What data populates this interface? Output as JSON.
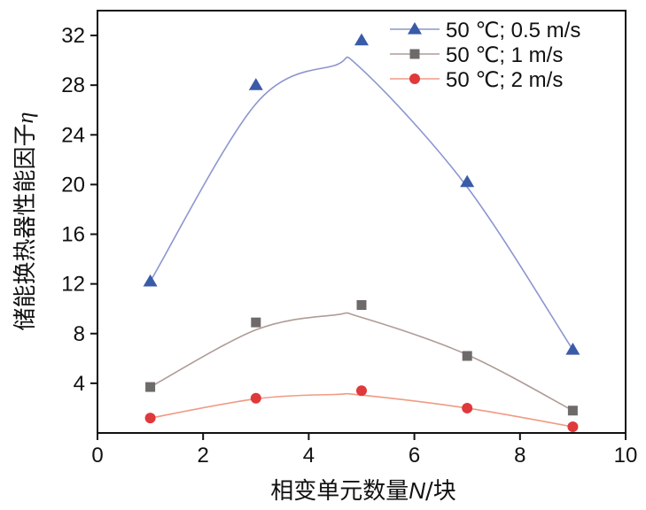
{
  "chart_data": {
    "type": "scatter",
    "title": "",
    "xlabel": "相变单元数量N/块",
    "xlabel_prefix": "相变单元数量",
    "xlabel_var": "N",
    "xlabel_suffix": "/块",
    "ylabel": "储能换热器性能因子η",
    "ylabel_prefix": "储能换热器性能因子",
    "ylabel_var": "η",
    "xlim": [
      0,
      10
    ],
    "ylim": [
      0,
      34
    ],
    "xticks": [
      0,
      2,
      4,
      6,
      8,
      10
    ],
    "xtick_labels": [
      "0",
      "2",
      "4",
      "6",
      "8",
      "10"
    ],
    "yticks": [
      4,
      8,
      12,
      16,
      20,
      24,
      28,
      32
    ],
    "ytick_labels": [
      "4",
      "8",
      "12",
      "16",
      "20",
      "24",
      "28",
      "32"
    ],
    "grid": false,
    "legend_position": "top-right",
    "series": [
      {
        "name": "50 ℃; 0.5 m/s",
        "marker": "triangle",
        "color": "#3a5ba8",
        "line_color": "#8c95cf",
        "x": [
          1,
          3,
          5,
          7,
          9
        ],
        "y": [
          12.2,
          28,
          31.6,
          20.2,
          6.7
        ],
        "fit_x": [
          1,
          3,
          4.5,
          5,
          7,
          9
        ],
        "fit_y": [
          12.2,
          26.5,
          29.6,
          29.3,
          19.8,
          6.7
        ]
      },
      {
        "name": "50 ℃; 1 m/s",
        "marker": "square",
        "color": "#6f6a6a",
        "line_color": "#b09b96",
        "x": [
          1,
          3,
          5,
          7,
          9
        ],
        "y": [
          3.7,
          8.9,
          10.3,
          6.2,
          1.8
        ],
        "fit_x": [
          1,
          3,
          4.5,
          5,
          7,
          9
        ],
        "fit_y": [
          3.7,
          8.3,
          9.5,
          9.3,
          6.3,
          1.8
        ]
      },
      {
        "name": "50 ℃; 2 m/s",
        "marker": "circle",
        "color": "#e0393b",
        "line_color": "#f09a85",
        "x": [
          1,
          3,
          5,
          7,
          9
        ],
        "y": [
          1.2,
          2.8,
          3.4,
          2.0,
          0.5
        ],
        "fit_x": [
          1,
          3,
          4.5,
          5,
          7,
          9
        ],
        "fit_y": [
          1.2,
          2.75,
          3.1,
          3.05,
          2.0,
          0.5
        ]
      }
    ]
  }
}
